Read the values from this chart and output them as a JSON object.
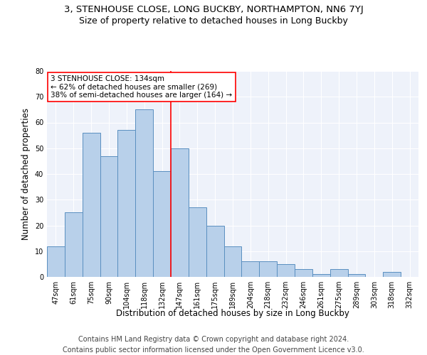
{
  "title1": "3, STENHOUSE CLOSE, LONG BUCKBY, NORTHAMPTON, NN6 7YJ",
  "title2": "Size of property relative to detached houses in Long Buckby",
  "xlabel": "Distribution of detached houses by size in Long Buckby",
  "ylabel": "Number of detached properties",
  "categories": [
    "47sqm",
    "61sqm",
    "75sqm",
    "90sqm",
    "104sqm",
    "118sqm",
    "132sqm",
    "147sqm",
    "161sqm",
    "175sqm",
    "189sqm",
    "204sqm",
    "218sqm",
    "232sqm",
    "246sqm",
    "261sqm",
    "275sqm",
    "289sqm",
    "303sqm",
    "318sqm",
    "332sqm"
  ],
  "values": [
    12,
    25,
    56,
    47,
    57,
    65,
    41,
    50,
    27,
    20,
    12,
    6,
    6,
    5,
    3,
    1,
    3,
    1,
    0,
    2,
    0
  ],
  "bar_color": "#b8d0ea",
  "bar_edge_color": "#5a8fc0",
  "vline_color": "red",
  "vline_pos": 6.5,
  "annotation_text": "3 STENHOUSE CLOSE: 134sqm\n← 62% of detached houses are smaller (269)\n38% of semi-detached houses are larger (164) →",
  "annotation_box_color": "white",
  "annotation_box_edge": "red",
  "ylim": [
    0,
    80
  ],
  "yticks": [
    0,
    10,
    20,
    30,
    40,
    50,
    60,
    70,
    80
  ],
  "background_color": "#eef2fa",
  "footer1": "Contains HM Land Registry data © Crown copyright and database right 2024.",
  "footer2": "Contains public sector information licensed under the Open Government Licence v3.0.",
  "title1_fontsize": 9.5,
  "title2_fontsize": 9,
  "xlabel_fontsize": 8.5,
  "ylabel_fontsize": 8.5,
  "tick_fontsize": 7,
  "footer_fontsize": 7,
  "annot_fontsize": 7.5
}
